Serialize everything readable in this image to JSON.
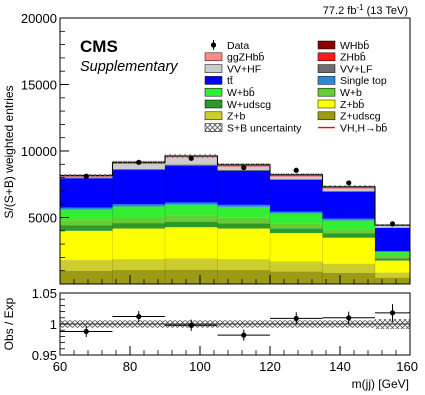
{
  "header": {
    "experiment": "CMS",
    "subtitle": "Supplementary",
    "lumi": "77.2 fb",
    "lumi_exponent": "-1",
    "energy": "(13 TeV)"
  },
  "chart_data": [
    {
      "type": "bar",
      "stacked": true,
      "xlabel": "m(jj) [GeV]",
      "ylabel": "S/(S+B) weighted entries",
      "xlim": [
        60,
        160
      ],
      "ylim": [
        0,
        20000
      ],
      "x_ticks": [
        "60",
        "80",
        "100",
        "120",
        "140",
        "160"
      ],
      "y_ticks": [
        "5000",
        "10000",
        "15000",
        "20000"
      ],
      "bins": [
        [
          60,
          75
        ],
        [
          75,
          90
        ],
        [
          90,
          105
        ],
        [
          105,
          120
        ],
        [
          120,
          135
        ],
        [
          135,
          150
        ],
        [
          150,
          160
        ]
      ],
      "series": [
        {
          "name": "Z+udscg",
          "color": "#9b9b16",
          "values": [
            1000,
            1050,
            1080,
            1050,
            950,
            850,
            480
          ]
        },
        {
          "name": "Z+b",
          "color": "#cdcd2e",
          "values": [
            800,
            820,
            840,
            820,
            760,
            680,
            380
          ]
        },
        {
          "name": "Z+bb̄",
          "color": "#ffff00",
          "values": [
            2200,
            2300,
            2350,
            2300,
            2120,
            1950,
            900
          ]
        },
        {
          "name": "W+udscg",
          "color": "#2b9a2b",
          "values": [
            400,
            410,
            420,
            400,
            360,
            320,
            170
          ]
        },
        {
          "name": "W+b",
          "color": "#66cc33",
          "values": [
            400,
            420,
            430,
            410,
            370,
            330,
            170
          ]
        },
        {
          "name": "W+bb̄",
          "color": "#33ee33",
          "values": [
            800,
            830,
            850,
            820,
            730,
            650,
            300
          ]
        },
        {
          "name": "Single top",
          "color": "#2a8bdc",
          "values": [
            150,
            160,
            160,
            150,
            140,
            130,
            80
          ]
        },
        {
          "name": "tt̄",
          "color": "#0000ff",
          "values": [
            2200,
            2600,
            2770,
            2570,
            2400,
            2030,
            1730
          ]
        },
        {
          "name": "VV+LF",
          "color": "#6e6e6e",
          "values": [
            60,
            70,
            80,
            70,
            60,
            50,
            30
          ]
        },
        {
          "name": "VV+HF",
          "color": "#cccccc",
          "values": [
            60,
            400,
            550,
            250,
            200,
            200,
            130
          ]
        },
        {
          "name": "ZHbb̄",
          "color": "#ff1a1a",
          "values": [
            40,
            40,
            50,
            60,
            60,
            60,
            30
          ]
        },
        {
          "name": "ggZHbb̄",
          "color": "#ff8a8a",
          "values": [
            20,
            20,
            20,
            30,
            30,
            30,
            10
          ]
        },
        {
          "name": "WHbb̄",
          "color": "#8b0000",
          "values": [
            30,
            30,
            30,
            40,
            40,
            40,
            20
          ]
        }
      ],
      "data_points": {
        "name": "Data",
        "x": [
          67.5,
          82.5,
          97.5,
          112.5,
          127.5,
          142.5,
          155
        ],
        "y": [
          8100,
          9150,
          9450,
          8750,
          8550,
          7600,
          4520
        ]
      },
      "uncertainty_label": "S+B uncertainty",
      "signal_line_label": "VH,H→bb̄",
      "legend": [
        {
          "name": "Data",
          "kind": "marker"
        },
        {
          "name": "WHbb̄",
          "kind": "box",
          "color": "#8b0000"
        },
        {
          "name": "ggZHbb̄",
          "kind": "box",
          "color": "#ff8a8a"
        },
        {
          "name": "ZHbb̄",
          "kind": "box",
          "color": "#ff1a1a"
        },
        {
          "name": "VV+HF",
          "kind": "box",
          "color": "#cccccc"
        },
        {
          "name": "VV+LF",
          "kind": "box",
          "color": "#6e6e6e"
        },
        {
          "name": "tt̄",
          "kind": "box",
          "color": "#0000ff"
        },
        {
          "name": "Single top",
          "kind": "box",
          "color": "#2a8bdc"
        },
        {
          "name": "W+bb̄",
          "kind": "box",
          "color": "#33ee33"
        },
        {
          "name": "W+b",
          "kind": "box",
          "color": "#66cc33"
        },
        {
          "name": "W+udscg",
          "kind": "box",
          "color": "#2b9a2b"
        },
        {
          "name": "Z+bb̄",
          "kind": "box",
          "color": "#ffff00"
        },
        {
          "name": "Z+b",
          "kind": "box",
          "color": "#cdcd2e"
        },
        {
          "name": "Z+udscg",
          "kind": "box",
          "color": "#9b9b16"
        },
        {
          "name": "S+B uncertainty",
          "kind": "hatch"
        },
        {
          "name": "VH,H→bb̄",
          "kind": "line",
          "color": "#ff0000"
        }
      ]
    },
    {
      "type": "scatter",
      "xlabel": "m(jj) [GeV]",
      "ylabel": "Obs / Exp",
      "xlim": [
        60,
        160
      ],
      "ylim": [
        0.95,
        1.05
      ],
      "y_ticks": [
        "0.95",
        "1",
        "1.05"
      ],
      "points": [
        {
          "x": 67.5,
          "y": 0.988,
          "err": 0.009,
          "xerr": 7.5
        },
        {
          "x": 82.5,
          "y": 1.012,
          "err": 0.009,
          "xerr": 7.5
        },
        {
          "x": 97.5,
          "y": 0.998,
          "err": 0.009,
          "xerr": 7.5
        },
        {
          "x": 112.5,
          "y": 0.982,
          "err": 0.009,
          "xerr": 7.5
        },
        {
          "x": 127.5,
          "y": 1.009,
          "err": 0.01,
          "xerr": 7.5
        },
        {
          "x": 142.5,
          "y": 1.01,
          "err": 0.01,
          "xerr": 7.5
        },
        {
          "x": 155,
          "y": 1.018,
          "err": 0.014,
          "xerr": 5
        }
      ],
      "band_halfwidth": [
        0.006,
        0.006,
        0.006,
        0.006,
        0.006,
        0.006,
        0.008
      ]
    }
  ]
}
